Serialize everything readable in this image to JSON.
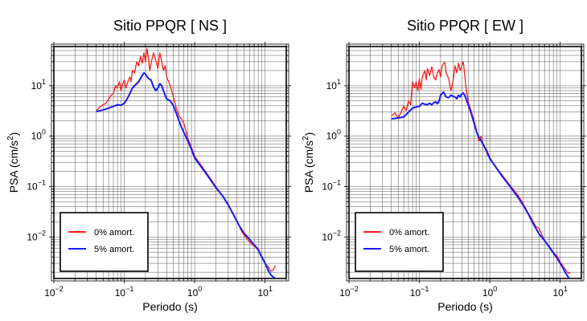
{
  "colors": {
    "red": "#ff1a1a",
    "blue": "#1a1aff",
    "grid": "#555555",
    "frame": "#000000"
  },
  "chart_data": [
    {
      "type": "line",
      "title": "Sitio PPQR [ NS ]",
      "xlabel": "Periodo (s)",
      "ylabel": "PSA (cm/s",
      "ylabel_sup": "2",
      "ylabel_end": ")",
      "xscale": "log",
      "yscale": "log",
      "xlim": [
        0.01,
        20
      ],
      "ylim": [
        0.0015,
        60
      ],
      "grid": true,
      "legend_position": "bottom-left",
      "xticks": [
        {
          "value": 0.01,
          "base": "10",
          "exp": "−2"
        },
        {
          "value": 0.1,
          "base": "10",
          "exp": "−1"
        },
        {
          "value": 1,
          "base": "10",
          "exp": "0"
        },
        {
          "value": 10,
          "base": "10",
          "exp": "1"
        }
      ],
      "yticks": [
        {
          "value": 0.01,
          "base": "10",
          "exp": "−2"
        },
        {
          "value": 0.1,
          "base": "10",
          "exp": "−1"
        },
        {
          "value": 1,
          "base": "10",
          "exp": "0"
        },
        {
          "value": 10,
          "base": "10",
          "exp": "1"
        }
      ],
      "series": [
        {
          "name": "0% amort.",
          "color": "#ff1a1a",
          "points": [
            [
              0.04,
              3.2
            ],
            [
              0.045,
              3.8
            ],
            [
              0.05,
              4.2
            ],
            [
              0.055,
              4.5
            ],
            [
              0.06,
              5.5
            ],
            [
              0.065,
              6.5
            ],
            [
              0.07,
              7
            ],
            [
              0.075,
              10
            ],
            [
              0.08,
              9
            ],
            [
              0.085,
              12
            ],
            [
              0.09,
              8
            ],
            [
              0.095,
              11
            ],
            [
              0.1,
              13
            ],
            [
              0.105,
              9
            ],
            [
              0.11,
              11
            ],
            [
              0.12,
              15
            ],
            [
              0.125,
              12
            ],
            [
              0.13,
              20
            ],
            [
              0.14,
              18
            ],
            [
              0.15,
              30
            ],
            [
              0.16,
              25
            ],
            [
              0.17,
              38
            ],
            [
              0.18,
              28
            ],
            [
              0.19,
              45
            ],
            [
              0.2,
              30
            ],
            [
              0.21,
              55
            ],
            [
              0.22,
              35
            ],
            [
              0.23,
              20
            ],
            [
              0.24,
              28
            ],
            [
              0.26,
              45
            ],
            [
              0.28,
              32
            ],
            [
              0.3,
              22
            ],
            [
              0.32,
              45
            ],
            [
              0.34,
              30
            ],
            [
              0.36,
              20
            ],
            [
              0.38,
              25
            ],
            [
              0.4,
              15
            ],
            [
              0.45,
              10
            ],
            [
              0.5,
              6
            ],
            [
              0.55,
              3.5
            ],
            [
              0.6,
              2.5
            ],
            [
              0.65,
              2.2
            ],
            [
              0.7,
              1.8
            ],
            [
              0.75,
              1.3
            ],
            [
              0.8,
              0.9
            ],
            [
              0.9,
              0.6
            ],
            [
              1,
              0.4
            ],
            [
              1.2,
              0.28
            ],
            [
              1.5,
              0.18
            ],
            [
              2,
              0.1
            ],
            [
              2.5,
              0.065
            ],
            [
              3,
              0.045
            ],
            [
              3.5,
              0.028
            ],
            [
              4,
              0.021
            ],
            [
              4.5,
              0.014
            ],
            [
              5,
              0.011
            ],
            [
              6,
              0.008
            ],
            [
              7,
              0.0065
            ],
            [
              8,
              0.006
            ],
            [
              9,
              0.0038
            ],
            [
              10,
              0.003
            ],
            [
              11,
              0.0026
            ],
            [
              12,
              0.0021
            ],
            [
              13,
              0.0022
            ],
            [
              14,
              0.0027
            ]
          ]
        },
        {
          "name": "5% amort.",
          "color": "#1a1aff",
          "points": [
            [
              0.04,
              3.1
            ],
            [
              0.05,
              3.3
            ],
            [
              0.06,
              3.6
            ],
            [
              0.07,
              3.9
            ],
            [
              0.08,
              4.2
            ],
            [
              0.09,
              4.1
            ],
            [
              0.1,
              4.5
            ],
            [
              0.11,
              5.5
            ],
            [
              0.12,
              7
            ],
            [
              0.13,
              9
            ],
            [
              0.14,
              10
            ],
            [
              0.15,
              11
            ],
            [
              0.16,
              12
            ],
            [
              0.17,
              14
            ],
            [
              0.18,
              16
            ],
            [
              0.19,
              18
            ],
            [
              0.2,
              17
            ],
            [
              0.22,
              14
            ],
            [
              0.24,
              13
            ],
            [
              0.26,
              9.5
            ],
            [
              0.28,
              8
            ],
            [
              0.3,
              9
            ],
            [
              0.32,
              11
            ],
            [
              0.34,
              10
            ],
            [
              0.36,
              8
            ],
            [
              0.38,
              6.5
            ],
            [
              0.4,
              5.5
            ],
            [
              0.45,
              5
            ],
            [
              0.5,
              4
            ],
            [
              0.55,
              2.8
            ],
            [
              0.6,
              2
            ],
            [
              0.65,
              1.5
            ],
            [
              0.7,
              1.2
            ],
            [
              0.8,
              0.8
            ],
            [
              0.9,
              0.55
            ],
            [
              1,
              0.37
            ],
            [
              1.2,
              0.26
            ],
            [
              1.5,
              0.17
            ],
            [
              2,
              0.095
            ],
            [
              2.5,
              0.065
            ],
            [
              3,
              0.043
            ],
            [
              3.5,
              0.029
            ],
            [
              4,
              0.02
            ],
            [
              4.5,
              0.015
            ],
            [
              5,
              0.012
            ],
            [
              6,
              0.009
            ],
            [
              7,
              0.007
            ],
            [
              8,
              0.0055
            ],
            [
              9,
              0.004
            ],
            [
              10,
              0.003
            ],
            [
              11,
              0.0022
            ],
            [
              12,
              0.0018
            ],
            [
              13,
              0.0016
            ],
            [
              14,
              0.0015
            ]
          ]
        }
      ]
    },
    {
      "type": "line",
      "title": "Sitio PPQR [ EW ]",
      "xlabel": "Periodo (s)",
      "ylabel": "PSA (cm/s",
      "ylabel_sup": "2",
      "ylabel_end": ")",
      "xscale": "log",
      "yscale": "log",
      "xlim": [
        0.01,
        20
      ],
      "ylim": [
        0.0015,
        60
      ],
      "grid": true,
      "legend_position": "bottom-left",
      "xticks": [
        {
          "value": 0.01,
          "base": "10",
          "exp": "−2"
        },
        {
          "value": 0.1,
          "base": "10",
          "exp": "−1"
        },
        {
          "value": 1,
          "base": "10",
          "exp": "0"
        },
        {
          "value": 10,
          "base": "10",
          "exp": "1"
        }
      ],
      "yticks": [
        {
          "value": 0.01,
          "base": "10",
          "exp": "−2"
        },
        {
          "value": 0.1,
          "base": "10",
          "exp": "−1"
        },
        {
          "value": 1,
          "base": "10",
          "exp": "0"
        },
        {
          "value": 10,
          "base": "10",
          "exp": "1"
        }
      ],
      "series": [
        {
          "name": "0% amort.",
          "color": "#ff1a1a",
          "points": [
            [
              0.04,
              2.5
            ],
            [
              0.045,
              2.9
            ],
            [
              0.05,
              2.3
            ],
            [
              0.055,
              3
            ],
            [
              0.06,
              4
            ],
            [
              0.065,
              3.2
            ],
            [
              0.07,
              5
            ],
            [
              0.075,
              4.2
            ],
            [
              0.08,
              12
            ],
            [
              0.085,
              9
            ],
            [
              0.09,
              12
            ],
            [
              0.095,
              8
            ],
            [
              0.1,
              14
            ],
            [
              0.105,
              8.5
            ],
            [
              0.11,
              15
            ],
            [
              0.12,
              20
            ],
            [
              0.125,
              13
            ],
            [
              0.13,
              22
            ],
            [
              0.14,
              16
            ],
            [
              0.15,
              24
            ],
            [
              0.16,
              15
            ],
            [
              0.17,
              13
            ],
            [
              0.18,
              18
            ],
            [
              0.19,
              21
            ],
            [
              0.2,
              15
            ],
            [
              0.21,
              24
            ],
            [
              0.22,
              28
            ],
            [
              0.23,
              29
            ],
            [
              0.24,
              18
            ],
            [
              0.26,
              14
            ],
            [
              0.28,
              8
            ],
            [
              0.3,
              12
            ],
            [
              0.32,
              25
            ],
            [
              0.34,
              18
            ],
            [
              0.36,
              28
            ],
            [
              0.38,
              20
            ],
            [
              0.4,
              25
            ],
            [
              0.42,
              30
            ],
            [
              0.44,
              17
            ],
            [
              0.46,
              9
            ],
            [
              0.5,
              4.5
            ],
            [
              0.55,
              3
            ],
            [
              0.6,
              2
            ],
            [
              0.65,
              1.3
            ],
            [
              0.7,
              0.8
            ],
            [
              0.75,
              1
            ],
            [
              0.8,
              0.65
            ],
            [
              0.9,
              0.55
            ],
            [
              1,
              0.38
            ],
            [
              1.2,
              0.25
            ],
            [
              1.5,
              0.17
            ],
            [
              2,
              0.1
            ],
            [
              2.5,
              0.068
            ],
            [
              3,
              0.045
            ],
            [
              3.5,
              0.03
            ],
            [
              4,
              0.022
            ],
            [
              4.5,
              0.016
            ],
            [
              5,
              0.015
            ],
            [
              5.5,
              0.011
            ],
            [
              6,
              0.0085
            ],
            [
              7,
              0.0065
            ],
            [
              8,
              0.005
            ],
            [
              9,
              0.0042
            ],
            [
              10,
              0.0032
            ],
            [
              11,
              0.0026
            ],
            [
              12,
              0.0022
            ],
            [
              13,
              0.0019
            ],
            [
              14,
              0.002
            ]
          ]
        },
        {
          "name": "5% amort.",
          "color": "#1a1aff",
          "points": [
            [
              0.04,
              2.2
            ],
            [
              0.05,
              2.3
            ],
            [
              0.06,
              2.4
            ],
            [
              0.07,
              3
            ],
            [
              0.08,
              3.6
            ],
            [
              0.09,
              3.8
            ],
            [
              0.1,
              3.9
            ],
            [
              0.11,
              4.5
            ],
            [
              0.12,
              4.3
            ],
            [
              0.13,
              4.2
            ],
            [
              0.14,
              4.5
            ],
            [
              0.15,
              4.2
            ],
            [
              0.16,
              4.6
            ],
            [
              0.17,
              4.8
            ],
            [
              0.18,
              4.4
            ],
            [
              0.19,
              4.9
            ],
            [
              0.2,
              6.5
            ],
            [
              0.22,
              7.5
            ],
            [
              0.24,
              6
            ],
            [
              0.26,
              5.8
            ],
            [
              0.28,
              6.5
            ],
            [
              0.3,
              6.2
            ],
            [
              0.32,
              6
            ],
            [
              0.34,
              5.5
            ],
            [
              0.36,
              6.5
            ],
            [
              0.38,
              6
            ],
            [
              0.4,
              6.8
            ],
            [
              0.42,
              7.2
            ],
            [
              0.44,
              6.5
            ],
            [
              0.46,
              5.5
            ],
            [
              0.5,
              4
            ],
            [
              0.55,
              2.7
            ],
            [
              0.6,
              1.8
            ],
            [
              0.65,
              1.2
            ],
            [
              0.7,
              0.95
            ],
            [
              0.8,
              0.7
            ],
            [
              0.9,
              0.5
            ],
            [
              1,
              0.36
            ],
            [
              1.2,
              0.25
            ],
            [
              1.5,
              0.16
            ],
            [
              2,
              0.095
            ],
            [
              2.5,
              0.062
            ],
            [
              3,
              0.042
            ],
            [
              3.5,
              0.029
            ],
            [
              4,
              0.02
            ],
            [
              4.5,
              0.015
            ],
            [
              5,
              0.0115
            ],
            [
              6,
              0.0085
            ],
            [
              7,
              0.0063
            ],
            [
              8,
              0.0048
            ],
            [
              9,
              0.0038
            ],
            [
              10,
              0.003
            ],
            [
              11,
              0.0024
            ],
            [
              12,
              0.0019
            ],
            [
              13,
              0.0016
            ],
            [
              14,
              0.0014
            ]
          ]
        }
      ]
    }
  ]
}
